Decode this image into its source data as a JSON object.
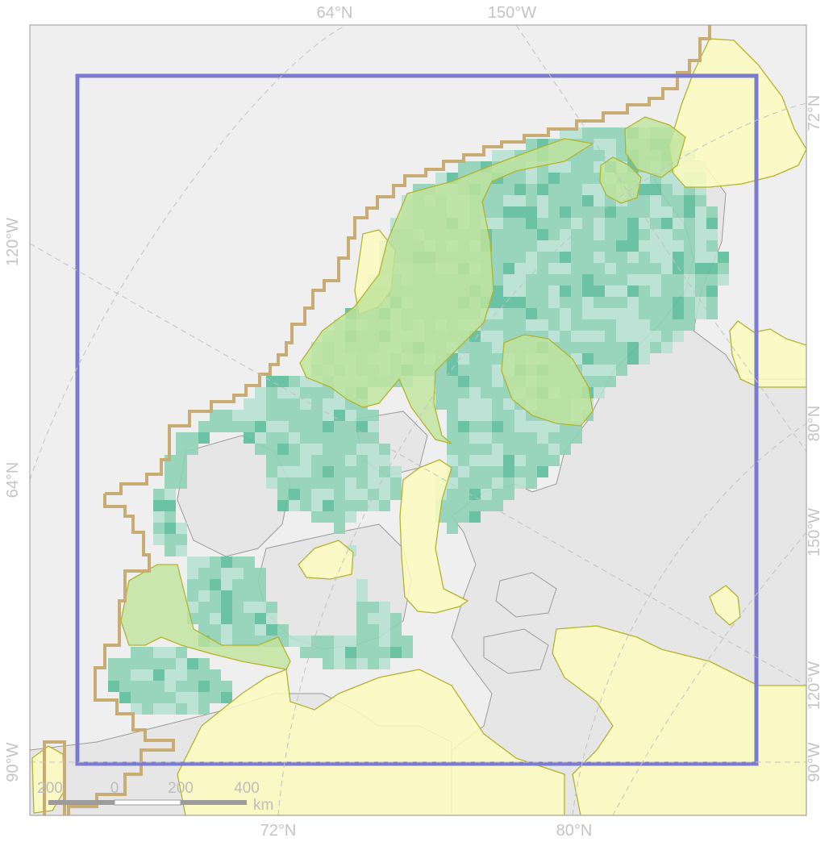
{
  "map": {
    "graticule_labels": {
      "top": [
        "64°N",
        "150°W"
      ],
      "bottom": [
        "72°N",
        "80°N"
      ],
      "left": [
        "120°W",
        "64°N",
        "90°W"
      ],
      "right": [
        "72°N",
        "80°N",
        "150°W",
        "120°W",
        "90°W"
      ]
    },
    "scale_bar": {
      "ticks": [
        "200",
        "0",
        "200",
        "400"
      ],
      "unit": "km"
    },
    "colors": {
      "ocean": "#efefef",
      "land": "#e6e6e6",
      "study_area_frame": "#7c7ccf",
      "region_outline": "#c8ac74",
      "zone_fill": "#fdfbc0",
      "zone_stroke": "#b5b32a",
      "cell_dark": "#5dbc9b",
      "cell_mid": "#8fd0b6",
      "cell_light": "#b6e1d2",
      "green_overlap": "#bfe49c"
    },
    "layers": [
      "ocean",
      "land",
      "grid-cells",
      "yellow-zones",
      "green-zones",
      "region-outline",
      "study-area-frame",
      "graticule"
    ]
  }
}
